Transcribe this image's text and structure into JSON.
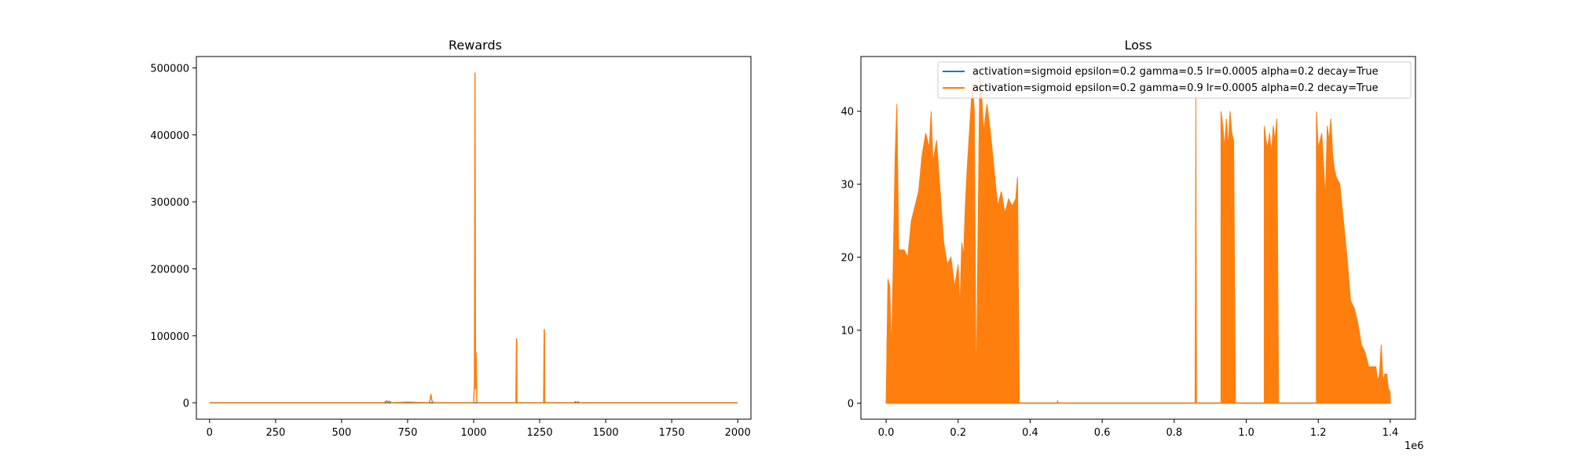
{
  "chart_data": [
    {
      "type": "line",
      "title": "Rewards",
      "xlabel": "",
      "ylabel": "",
      "xlim": [
        -50,
        2050
      ],
      "ylim": [
        -24500,
        517000
      ],
      "xticks": [
        0,
        250,
        500,
        750,
        1000,
        1250,
        1500,
        1750,
        2000
      ],
      "xtick_labels": [
        "0",
        "250",
        "500",
        "750",
        "1000",
        "1250",
        "1500",
        "1750",
        "2000"
      ],
      "yticks": [
        0,
        100000,
        200000,
        300000,
        400000,
        500000
      ],
      "ytick_labels": [
        "0",
        "100000",
        "200000",
        "300000",
        "400000",
        "500000"
      ],
      "grid": false,
      "series": [
        {
          "color": "#1f77b4",
          "x": [
            0,
            1000,
            1999
          ],
          "y": [
            0,
            0,
            0
          ]
        },
        {
          "color": "#ff7f0e",
          "x": [
            0,
            660,
            670,
            675,
            680,
            690,
            750,
            830,
            835,
            838,
            842,
            846,
            850,
            1000,
            1003,
            1005,
            1007,
            1009,
            1010,
            1012,
            1013,
            1015,
            1160,
            1162,
            1163,
            1164,
            1166,
            1265,
            1267,
            1268,
            1269,
            1271,
            1380,
            1385,
            1390,
            1395,
            1400,
            1999
          ],
          "y": [
            0,
            0,
            3000,
            1000,
            2500,
            0,
            1000,
            0,
            4000,
            13000,
            3000,
            1000,
            0,
            0,
            30000,
            493000,
            20000,
            75000,
            60000,
            2000,
            1000,
            0,
            0,
            96000,
            95000,
            2000,
            0,
            0,
            110000,
            105000,
            1500,
            0,
            0,
            2000,
            500,
            1800,
            0,
            0
          ]
        }
      ]
    },
    {
      "type": "line",
      "title": "Loss",
      "xlabel": "",
      "ylabel": "",
      "xlim": [
        -0.07,
        1.47
      ],
      "ylim": [
        -2.2,
        47.5
      ],
      "xticks": [
        0.0,
        0.2,
        0.4,
        0.6,
        0.8,
        1.0,
        1.2,
        1.4
      ],
      "xtick_labels": [
        "0.0",
        "0.2",
        "0.4",
        "0.6",
        "0.8",
        "1.0",
        "1.2",
        "1.4"
      ],
      "x_offset_label": "1e6",
      "yticks": [
        0,
        10,
        20,
        30,
        40
      ],
      "ytick_labels": [
        "0",
        "10",
        "20",
        "30",
        "40"
      ],
      "grid": false,
      "legend": {
        "position": "upper right",
        "entries": [
          {
            "label": "activation=sigmoid epsilon=0.2 gamma=0.5 lr=0.0005 alpha=0.2 decay=True",
            "color": "#1f77b4"
          },
          {
            "label": "activation=sigmoid epsilon=0.2 gamma=0.9 lr=0.0005 alpha=0.2 decay=True",
            "color": "#ff7f0e"
          }
        ]
      },
      "series": [
        {
          "name": "activation=sigmoid epsilon=0.2 gamma=0.5 lr=0.0005 alpha=0.2 decay=True",
          "color": "#1f77b4",
          "x": [
            0.0,
            1.4
          ],
          "y": [
            0,
            0
          ]
        },
        {
          "name": "activation=sigmoid epsilon=0.2 gamma=0.9 lr=0.0005 alpha=0.2 decay=True",
          "color": "#ff7f0e",
          "envelope": [
            [
              0.0,
              0
            ],
            [
              0.005,
              17
            ],
            [
              0.01,
              16
            ],
            [
              0.015,
              7
            ],
            [
              0.02,
              20
            ],
            [
              0.025,
              34
            ],
            [
              0.03,
              41
            ],
            [
              0.035,
              21
            ],
            [
              0.05,
              21
            ],
            [
              0.06,
              20
            ],
            [
              0.07,
              25
            ],
            [
              0.08,
              27
            ],
            [
              0.09,
              29
            ],
            [
              0.1,
              34
            ],
            [
              0.11,
              37
            ],
            [
              0.12,
              35
            ],
            [
              0.125,
              40
            ],
            [
              0.13,
              33
            ],
            [
              0.14,
              36
            ],
            [
              0.15,
              29
            ],
            [
              0.16,
              22
            ],
            [
              0.17,
              19
            ],
            [
              0.18,
              20
            ],
            [
              0.19,
              16
            ],
            [
              0.2,
              19
            ],
            [
              0.205,
              13
            ],
            [
              0.21,
              22
            ],
            [
              0.215,
              20
            ],
            [
              0.22,
              27
            ],
            [
              0.225,
              32
            ],
            [
              0.23,
              36
            ],
            [
              0.235,
              40
            ],
            [
              0.24,
              44
            ],
            [
              0.245,
              40
            ],
            [
              0.25,
              0
            ],
            [
              0.26,
              45
            ],
            [
              0.265,
              43
            ],
            [
              0.27,
              37
            ],
            [
              0.28,
              41
            ],
            [
              0.29,
              37
            ],
            [
              0.3,
              32
            ],
            [
              0.31,
              27
            ],
            [
              0.32,
              29
            ],
            [
              0.33,
              26
            ],
            [
              0.34,
              28
            ],
            [
              0.35,
              27
            ],
            [
              0.36,
              28
            ],
            [
              0.365,
              31
            ],
            [
              0.37,
              0
            ],
            [
              0.475,
              0
            ],
            [
              0.476,
              0.4
            ],
            [
              0.478,
              0
            ],
            [
              0.858,
              0
            ],
            [
              0.86,
              42
            ],
            [
              0.862,
              0
            ],
            [
              0.93,
              0
            ],
            [
              0.93,
              40
            ],
            [
              0.935,
              38
            ],
            [
              0.94,
              35
            ],
            [
              0.945,
              39
            ],
            [
              0.95,
              35
            ],
            [
              0.955,
              40
            ],
            [
              0.96,
              37
            ],
            [
              0.965,
              36
            ],
            [
              0.97,
              0
            ],
            [
              1.05,
              0
            ],
            [
              1.05,
              38
            ],
            [
              1.055,
              36
            ],
            [
              1.06,
              35
            ],
            [
              1.065,
              37
            ],
            [
              1.07,
              34
            ],
            [
              1.075,
              38
            ],
            [
              1.08,
              36
            ],
            [
              1.085,
              39
            ],
            [
              1.09,
              0
            ],
            [
              1.195,
              0
            ],
            [
              1.195,
              40
            ],
            [
              1.2,
              35
            ],
            [
              1.21,
              37
            ],
            [
              1.22,
              28
            ],
            [
              1.225,
              38
            ],
            [
              1.23,
              36
            ],
            [
              1.235,
              39
            ],
            [
              1.24,
              34
            ],
            [
              1.245,
              32
            ],
            [
              1.25,
              31
            ],
            [
              1.26,
              30
            ],
            [
              1.27,
              25
            ],
            [
              1.28,
              20
            ],
            [
              1.29,
              14
            ],
            [
              1.3,
              13
            ],
            [
              1.31,
              11
            ],
            [
              1.32,
              8
            ],
            [
              1.33,
              7
            ],
            [
              1.34,
              5
            ],
            [
              1.35,
              5
            ],
            [
              1.36,
              5
            ],
            [
              1.365,
              3
            ],
            [
              1.37,
              4
            ],
            [
              1.375,
              8
            ],
            [
              1.38,
              3
            ],
            [
              1.385,
              4
            ],
            [
              1.39,
              4
            ],
            [
              1.395,
              2
            ],
            [
              1.4,
              1.5
            ]
          ]
        }
      ]
    }
  ]
}
